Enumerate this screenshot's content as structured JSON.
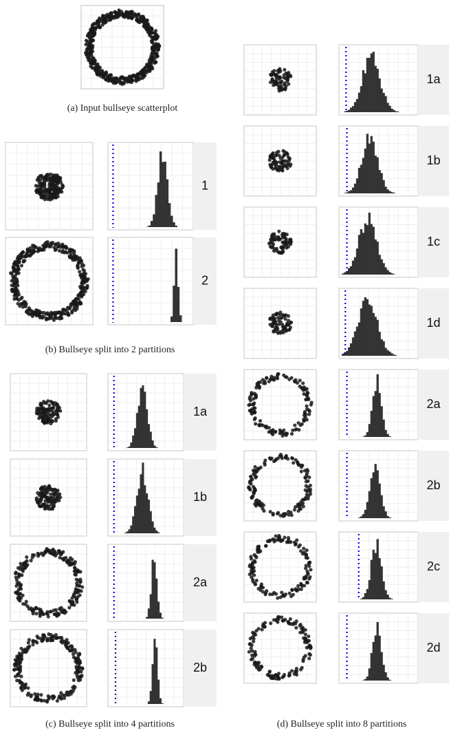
{
  "figure": {
    "subfigures": [
      {
        "caption": "(a) Input bullseye scatterplot"
      },
      {
        "caption": "(b) Bullseye split into 2 partitions",
        "panels": [
          "1",
          "2"
        ]
      },
      {
        "caption": "(c) Bullseye split into 4 partitions",
        "panels": [
          "1a",
          "1b",
          "2a",
          "2b"
        ]
      },
      {
        "caption": "(d) Bullseye split into 8 partitions",
        "panels": [
          "1a",
          "1b",
          "1c",
          "1d",
          "2a",
          "2b",
          "2c",
          "2d"
        ]
      }
    ]
  }
}
